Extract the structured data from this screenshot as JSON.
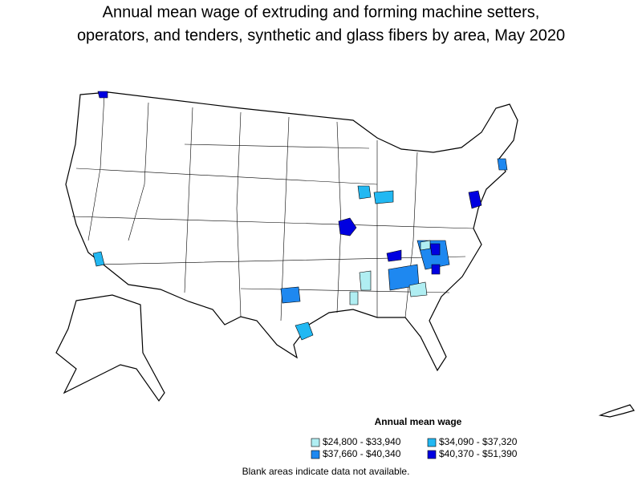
{
  "title": [
    "Annual mean wage of extruding and forming machine setters,",
    "operators, and tenders, synthetic and glass fibers by area, May 2020"
  ],
  "legend": {
    "title": "Annual mean wage",
    "items": [
      {
        "label": "$24,800 - $33,940",
        "color": "#b0eef2"
      },
      {
        "label": "$34,090 - $37,320",
        "color": "#22b8f2"
      },
      {
        "label": "$37,660 - $40,340",
        "color": "#1e88f0"
      },
      {
        "label": "$40,370 - $51,390",
        "color": "#0000e0"
      }
    ]
  },
  "note": "Blank areas indicate data not available."
}
